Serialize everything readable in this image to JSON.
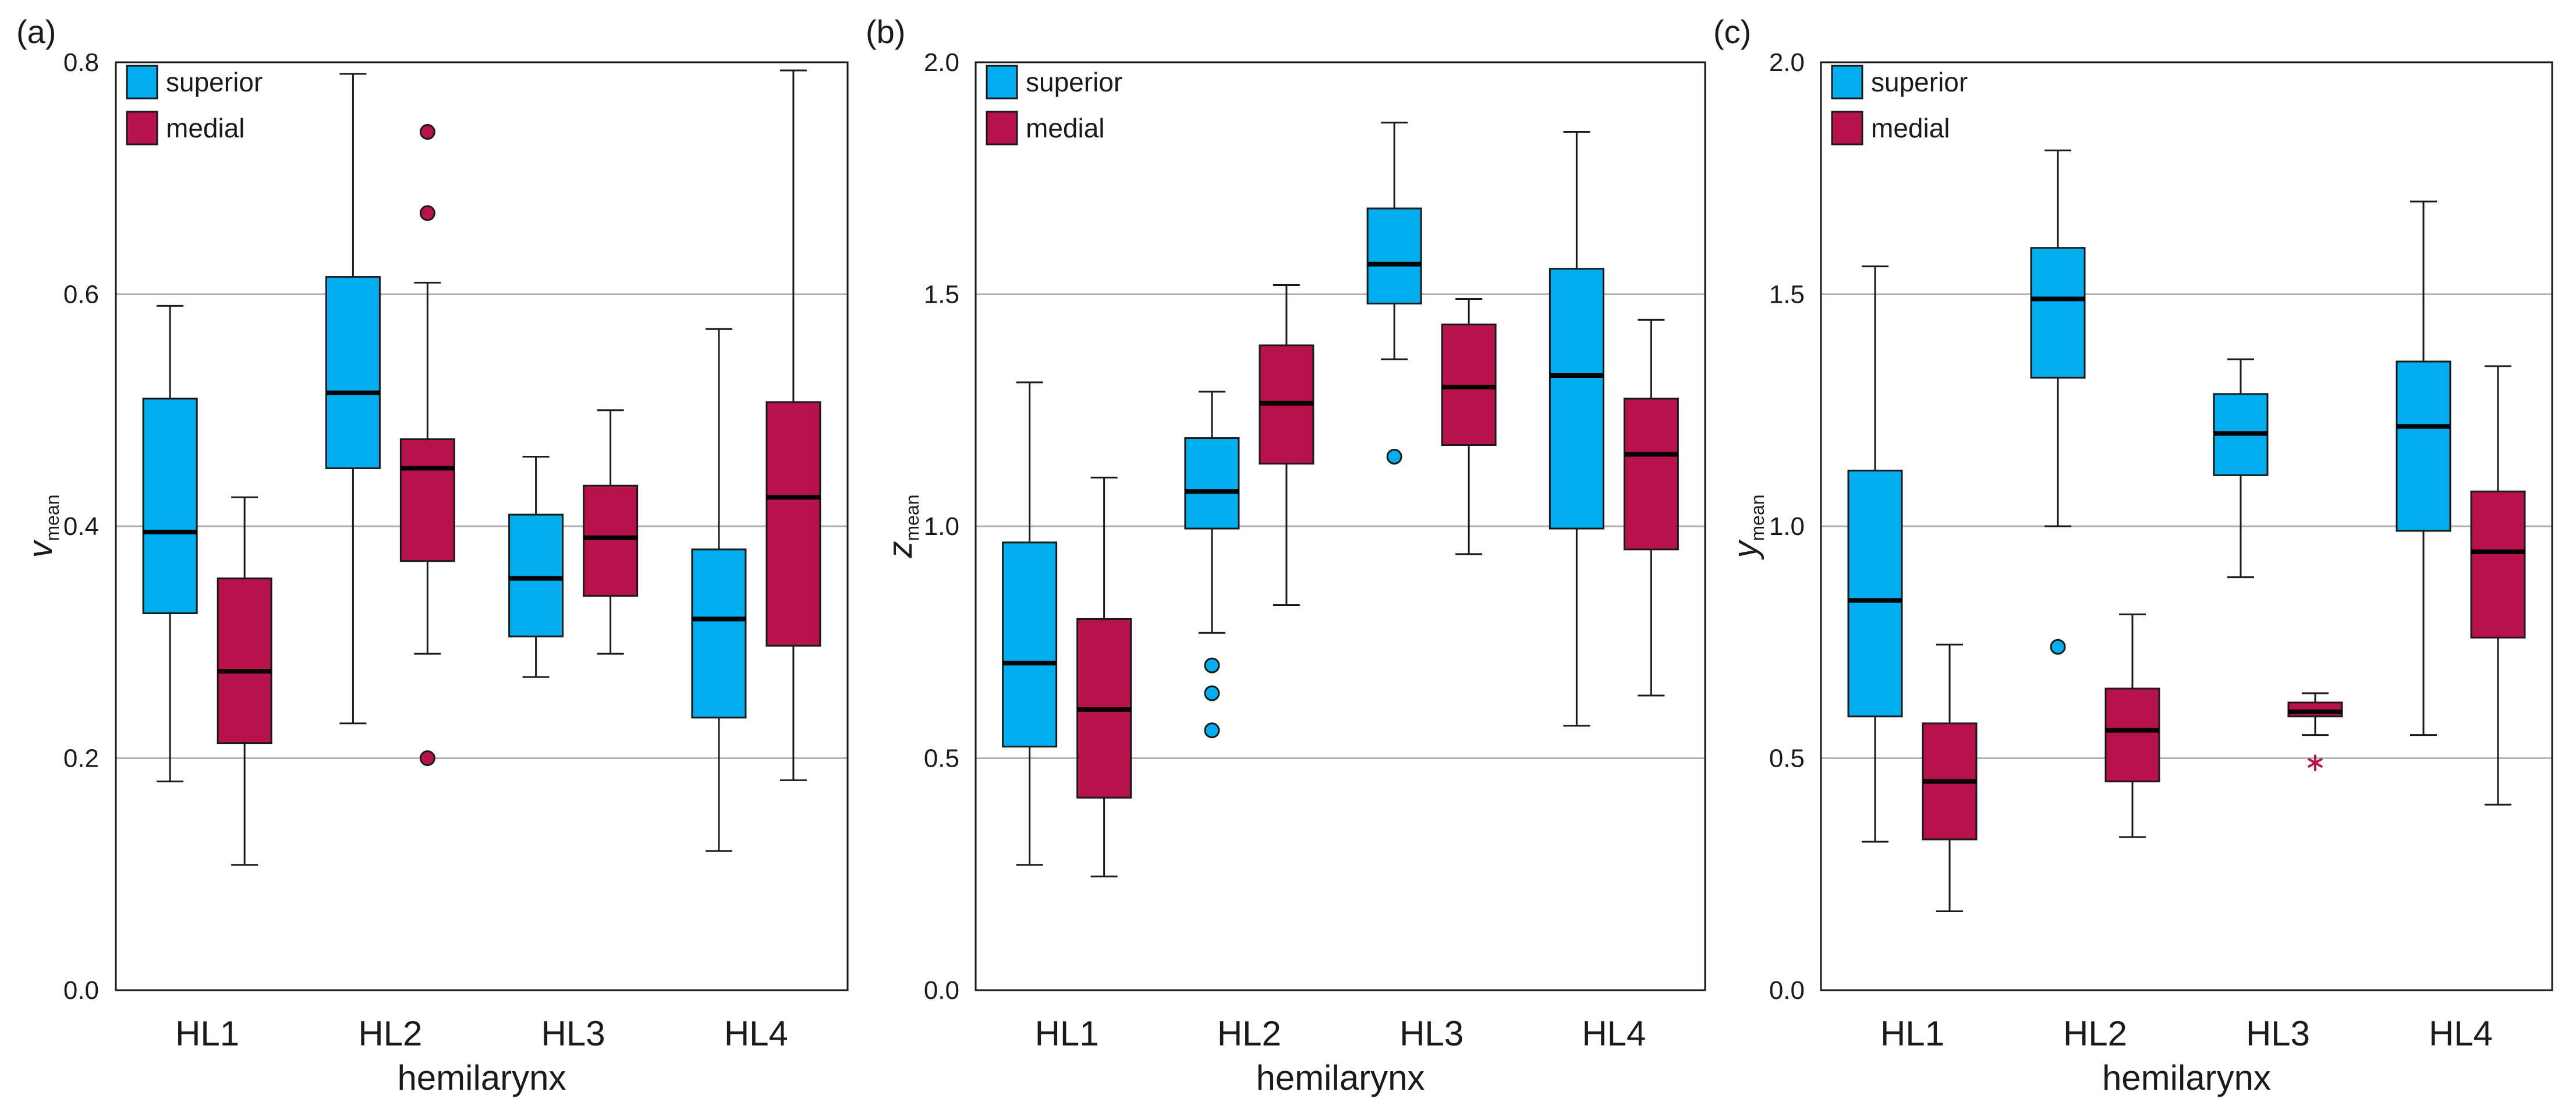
{
  "chart_data": [
    {
      "type": "box",
      "panel_label": "(a)",
      "ylabel": "v",
      "ylabel_sub": "mean",
      "xlabel": "hemilarynx",
      "ylim": [
        0.0,
        0.8
      ],
      "yticks": [
        "0.0",
        "0.2",
        "0.4",
        "0.6",
        "0.8"
      ],
      "ytick_values": [
        0.0,
        0.2,
        0.4,
        0.6,
        0.8
      ],
      "grid": true,
      "legend_position": "top-left",
      "categories": [
        "HL1",
        "HL2",
        "HL3",
        "HL4"
      ],
      "series": [
        {
          "name": "superior",
          "color": "#00aeef",
          "boxes": [
            {
              "min": 0.18,
              "q1": 0.325,
              "median": 0.395,
              "q3": 0.51,
              "max": 0.59,
              "outliers": [],
              "extremes": []
            },
            {
              "min": 0.23,
              "q1": 0.45,
              "median": 0.515,
              "q3": 0.615,
              "max": 0.79,
              "outliers": [],
              "extremes": []
            },
            {
              "min": 0.27,
              "q1": 0.305,
              "median": 0.355,
              "q3": 0.41,
              "max": 0.46,
              "outliers": [],
              "extremes": []
            },
            {
              "min": 0.12,
              "q1": 0.235,
              "median": 0.32,
              "q3": 0.38,
              "max": 0.57,
              "outliers": [],
              "extremes": []
            }
          ]
        },
        {
          "name": "medial",
          "color": "#b8124d",
          "boxes": [
            {
              "min": 0.108,
              "q1": 0.213,
              "median": 0.275,
              "q3": 0.355,
              "max": 0.425,
              "outliers": [],
              "extremes": []
            },
            {
              "min": 0.29,
              "q1": 0.37,
              "median": 0.45,
              "q3": 0.475,
              "max": 0.61,
              "outliers": [
                0.74,
                0.67,
                0.2
              ],
              "extremes": []
            },
            {
              "min": 0.29,
              "q1": 0.34,
              "median": 0.39,
              "q3": 0.435,
              "max": 0.5,
              "outliers": [],
              "extremes": []
            },
            {
              "min": 0.181,
              "q1": 0.297,
              "median": 0.425,
              "q3": 0.507,
              "max": 0.793,
              "outliers": [],
              "extremes": []
            }
          ]
        }
      ]
    },
    {
      "type": "box",
      "panel_label": "(b)",
      "ylabel": "z",
      "ylabel_sub": "mean",
      "xlabel": "hemilarynx",
      "ylim": [
        0.0,
        2.0
      ],
      "yticks": [
        "0.0",
        "0.5",
        "1.0",
        "1.5",
        "2.0"
      ],
      "ytick_values": [
        0.0,
        0.5,
        1.0,
        1.5,
        2.0
      ],
      "grid": true,
      "legend_position": "top-left",
      "categories": [
        "HL1",
        "HL2",
        "HL3",
        "HL4"
      ],
      "series": [
        {
          "name": "superior",
          "color": "#00aeef",
          "boxes": [
            {
              "min": 0.27,
              "q1": 0.525,
              "median": 0.705,
              "q3": 0.965,
              "max": 1.31,
              "outliers": [],
              "extremes": []
            },
            {
              "min": 0.77,
              "q1": 0.995,
              "median": 1.075,
              "q3": 1.19,
              "max": 1.29,
              "outliers": [
                0.7,
                0.64,
                0.56
              ],
              "extremes": []
            },
            {
              "min": 1.36,
              "q1": 1.48,
              "median": 1.565,
              "q3": 1.685,
              "max": 1.87,
              "outliers": [
                1.15
              ],
              "extremes": []
            },
            {
              "min": 0.57,
              "q1": 0.995,
              "median": 1.325,
              "q3": 1.555,
              "max": 1.85,
              "outliers": [],
              "extremes": []
            }
          ]
        },
        {
          "name": "medial",
          "color": "#b8124d",
          "boxes": [
            {
              "min": 0.245,
              "q1": 0.415,
              "median": 0.605,
              "q3": 0.8,
              "max": 1.105,
              "outliers": [],
              "extremes": []
            },
            {
              "min": 0.83,
              "q1": 1.135,
              "median": 1.265,
              "q3": 1.39,
              "max": 1.52,
              "outliers": [],
              "extremes": []
            },
            {
              "min": 0.94,
              "q1": 1.175,
              "median": 1.3,
              "q3": 1.435,
              "max": 1.49,
              "outliers": [],
              "extremes": []
            },
            {
              "min": 0.635,
              "q1": 0.95,
              "median": 1.155,
              "q3": 1.275,
              "max": 1.445,
              "outliers": [],
              "extremes": []
            }
          ]
        }
      ]
    },
    {
      "type": "box",
      "panel_label": "(c)",
      "ylabel": "y",
      "ylabel_sub": "mean",
      "xlabel": "hemilarynx",
      "ylim": [
        0.0,
        2.0
      ],
      "yticks": [
        "0.0",
        "0.5",
        "1.0",
        "1.5",
        "2.0"
      ],
      "ytick_values": [
        0.0,
        0.5,
        1.0,
        1.5,
        2.0
      ],
      "grid": true,
      "legend_position": "top-left",
      "categories": [
        "HL1",
        "HL2",
        "HL3",
        "HL4"
      ],
      "series": [
        {
          "name": "superior",
          "color": "#00aeef",
          "boxes": [
            {
              "min": 0.32,
              "q1": 0.59,
              "median": 0.84,
              "q3": 1.12,
              "max": 1.56,
              "outliers": [],
              "extremes": []
            },
            {
              "min": 1.0,
              "q1": 1.32,
              "median": 1.49,
              "q3": 1.6,
              "max": 1.81,
              "outliers": [
                0.74
              ],
              "extremes": []
            },
            {
              "min": 0.89,
              "q1": 1.11,
              "median": 1.2,
              "q3": 1.285,
              "max": 1.36,
              "outliers": [],
              "extremes": []
            },
            {
              "min": 0.55,
              "q1": 0.99,
              "median": 1.215,
              "q3": 1.355,
              "max": 1.7,
              "outliers": [],
              "extremes": []
            }
          ]
        },
        {
          "name": "medial",
          "color": "#b8124d",
          "boxes": [
            {
              "min": 0.17,
              "q1": 0.325,
              "median": 0.45,
              "q3": 0.575,
              "max": 0.745,
              "outliers": [],
              "extremes": []
            },
            {
              "min": 0.33,
              "q1": 0.45,
              "median": 0.56,
              "q3": 0.65,
              "max": 0.81,
              "outliers": [],
              "extremes": []
            },
            {
              "min": 0.55,
              "q1": 0.59,
              "median": 0.6,
              "q3": 0.62,
              "max": 0.64,
              "outliers": [],
              "extremes": [
                0.49
              ]
            },
            {
              "min": 0.4,
              "q1": 0.76,
              "median": 0.945,
              "q3": 1.075,
              "max": 1.345,
              "outliers": [],
              "extremes": []
            }
          ]
        }
      ]
    }
  ]
}
